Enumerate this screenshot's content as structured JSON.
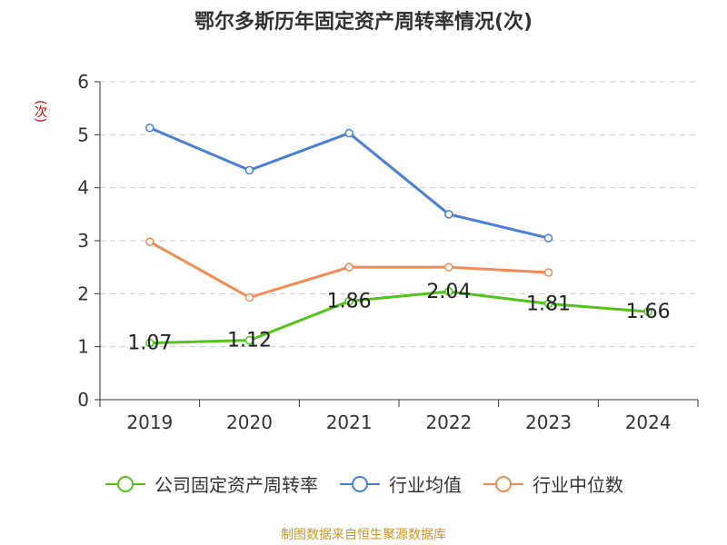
{
  "chart_data": {
    "type": "line",
    "title": "鄂尔多斯历年固定资产周转率情况(次)",
    "ylabel": "(次)",
    "xlabel": "",
    "categories": [
      "2019",
      "2020",
      "2021",
      "2022",
      "2023",
      "2024"
    ],
    "ylim": [
      0,
      6
    ],
    "yticks": [
      "0",
      "1",
      "2",
      "3",
      "4",
      "5",
      "6"
    ],
    "grid": true,
    "legend_position": "bottom",
    "series": [
      {
        "name": "公司固定资产周转率",
        "color": "#52c41a",
        "values": [
          1.07,
          1.12,
          1.86,
          2.04,
          1.81,
          1.66
        ],
        "labels": [
          "1.07",
          "1.12",
          "1.86",
          "2.04",
          "1.81",
          "1.66"
        ]
      },
      {
        "name": "行业均值",
        "color": "#4a7fd8",
        "values": [
          5.13,
          4.33,
          5.03,
          3.5,
          3.05,
          null
        ]
      },
      {
        "name": "行业中位数",
        "color": "#f28b54",
        "values": [
          2.98,
          1.93,
          2.5,
          2.5,
          2.4,
          null
        ]
      }
    ]
  },
  "source_text": "制图数据来自恒生聚源数据库"
}
